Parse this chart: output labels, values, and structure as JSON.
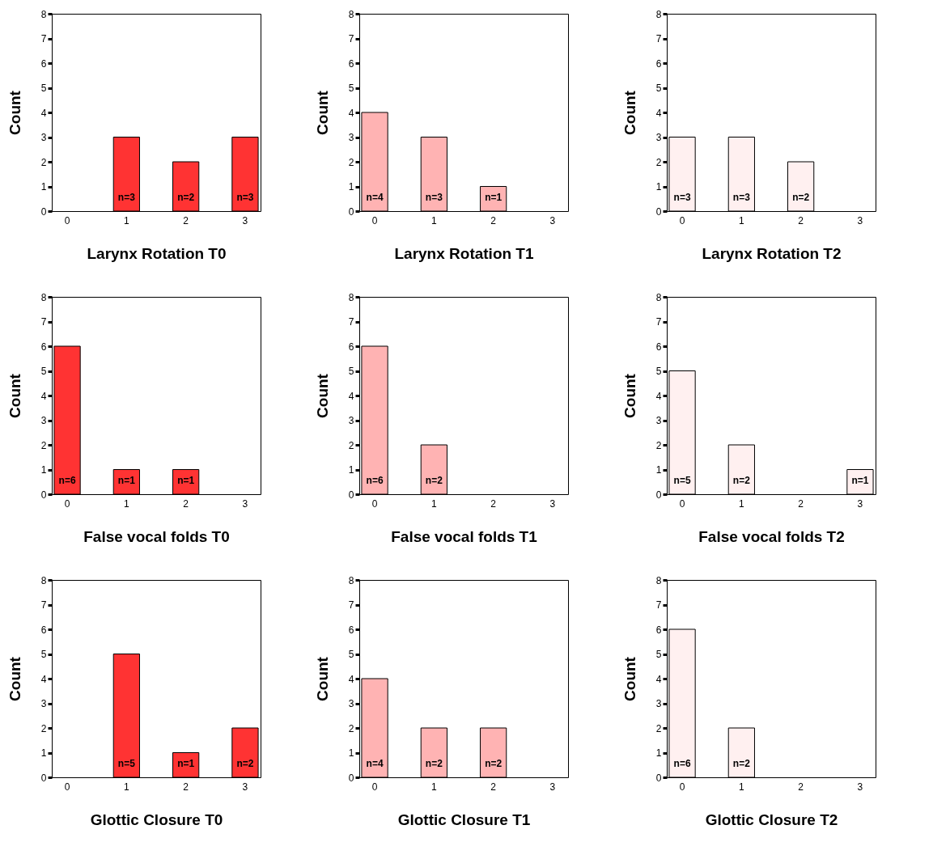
{
  "chart_data": [
    {
      "type": "bar",
      "xlabel": "Larynx Rotation T0",
      "ylabel": "Count",
      "categories": [
        "0",
        "1",
        "2",
        "3"
      ],
      "values": [
        null,
        3,
        2,
        3
      ],
      "value_labels": [
        null,
        "n=3",
        "n=2",
        "n=3"
      ],
      "color": "#ff3333",
      "ylim": [
        0,
        8
      ],
      "yticks": [
        0,
        1,
        2,
        3,
        4,
        5,
        6,
        7,
        8
      ]
    },
    {
      "type": "bar",
      "xlabel": "Larynx Rotation T1",
      "ylabel": "Count",
      "categories": [
        "0",
        "1",
        "2",
        "3"
      ],
      "values": [
        4,
        3,
        1,
        null
      ],
      "value_labels": [
        "n=4",
        "n=3",
        "n=1",
        null
      ],
      "color": "#ffb3b3",
      "ylim": [
        0,
        8
      ],
      "yticks": [
        0,
        1,
        2,
        3,
        4,
        5,
        6,
        7,
        8
      ]
    },
    {
      "type": "bar",
      "xlabel": "Larynx Rotation T2",
      "ylabel": "Count",
      "categories": [
        "0",
        "1",
        "2",
        "3"
      ],
      "values": [
        3,
        3,
        2,
        null
      ],
      "value_labels": [
        "n=3",
        "n=3",
        "n=2",
        null
      ],
      "color": "#fff0f0",
      "ylim": [
        0,
        8
      ],
      "yticks": [
        0,
        1,
        2,
        3,
        4,
        5,
        6,
        7,
        8
      ]
    },
    {
      "type": "bar",
      "xlabel": "False vocal folds T0",
      "ylabel": "Count",
      "categories": [
        "0",
        "1",
        "2",
        "3"
      ],
      "values": [
        6,
        1,
        1,
        null
      ],
      "value_labels": [
        "n=6",
        "n=1",
        "n=1",
        null
      ],
      "color": "#ff3333",
      "ylim": [
        0,
        8
      ],
      "yticks": [
        0,
        1,
        2,
        3,
        4,
        5,
        6,
        7,
        8
      ]
    },
    {
      "type": "bar",
      "xlabel": "False vocal folds T1",
      "ylabel": "Count",
      "categories": [
        "0",
        "1",
        "2",
        "3"
      ],
      "values": [
        6,
        2,
        null,
        null
      ],
      "value_labels": [
        "n=6",
        "n=2",
        null,
        null
      ],
      "color": "#ffb3b3",
      "ylim": [
        0,
        8
      ],
      "yticks": [
        0,
        1,
        2,
        3,
        4,
        5,
        6,
        7,
        8
      ]
    },
    {
      "type": "bar",
      "xlabel": "False vocal folds T2",
      "ylabel": "Count",
      "categories": [
        "0",
        "1",
        "2",
        "3"
      ],
      "values": [
        5,
        2,
        null,
        1
      ],
      "value_labels": [
        "n=5",
        "n=2",
        null,
        "n=1"
      ],
      "color": "#fff0f0",
      "ylim": [
        0,
        8
      ],
      "yticks": [
        0,
        1,
        2,
        3,
        4,
        5,
        6,
        7,
        8
      ]
    },
    {
      "type": "bar",
      "xlabel": "Glottic Closure T0",
      "ylabel": "Count",
      "categories": [
        "0",
        "1",
        "2",
        "3"
      ],
      "values": [
        null,
        5,
        1,
        2
      ],
      "value_labels": [
        null,
        "n=5",
        "n=1",
        "n=2"
      ],
      "color": "#ff3333",
      "ylim": [
        0,
        8
      ],
      "yticks": [
        0,
        1,
        2,
        3,
        4,
        5,
        6,
        7,
        8
      ]
    },
    {
      "type": "bar",
      "xlabel": "Glottic Closure T1",
      "ylabel": "Count",
      "categories": [
        "0",
        "1",
        "2",
        "3"
      ],
      "values": [
        4,
        2,
        2,
        null
      ],
      "value_labels": [
        "n=4",
        "n=2",
        "n=2",
        null
      ],
      "color": "#ffb3b3",
      "ylim": [
        0,
        8
      ],
      "yticks": [
        0,
        1,
        2,
        3,
        4,
        5,
        6,
        7,
        8
      ]
    },
    {
      "type": "bar",
      "xlabel": "Glottic Closure  T2",
      "ylabel": "Count",
      "categories": [
        "0",
        "1",
        "2",
        "3"
      ],
      "values": [
        6,
        2,
        null,
        null
      ],
      "value_labels": [
        "n=6",
        "n=2",
        null,
        null
      ],
      "color": "#fff0f0",
      "ylim": [
        0,
        8
      ],
      "yticks": [
        0,
        1,
        2,
        3,
        4,
        5,
        6,
        7,
        8
      ]
    }
  ]
}
